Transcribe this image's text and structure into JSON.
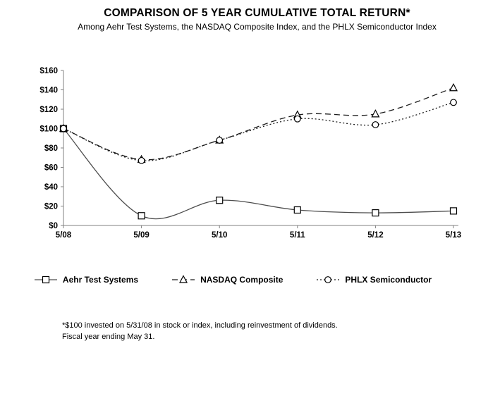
{
  "header": {
    "title": "COMPARISON OF 5 YEAR CUMULATIVE TOTAL RETURN*",
    "subtitle": "Among Aehr Test Systems, the NASDAQ Composite Index, and the PHLX Semiconductor Index"
  },
  "chart_data": {
    "type": "line",
    "title": "COMPARISON OF 5 YEAR CUMULATIVE TOTAL RETURN*",
    "categories": [
      "5/08",
      "5/09",
      "5/10",
      "5/11",
      "5/12",
      "5/13"
    ],
    "series": [
      {
        "name": "Aehr Test Systems",
        "marker": "square",
        "line": "solid",
        "color": "#4d4d4d",
        "marker_color": "#000000",
        "values": [
          100,
          10,
          26,
          16,
          13,
          15
        ]
      },
      {
        "name": "NASDAQ Composite",
        "marker": "triangle",
        "line": "dashed",
        "color": "#1a1a1a",
        "marker_color": "#000000",
        "values": [
          100,
          68,
          88,
          114,
          115,
          142
        ]
      },
      {
        "name": "PHLX Semiconductor",
        "marker": "circle",
        "line": "dotted",
        "color": "#1a1a1a",
        "marker_color": "#000000",
        "values": [
          100,
          67,
          88,
          110,
          104,
          127
        ]
      }
    ],
    "xlabel": "",
    "ylabel": "",
    "ylim": [
      0,
      160
    ],
    "ytick_step": 20,
    "ytick_prefix": "$",
    "grid": false,
    "legend_position": "bottom",
    "axis_color": "#808080"
  },
  "footnote": {
    "lines": [
      "*$100 invested on 5/31/08 in stock or index, including reinvestment of dividends.",
      "Fiscal year ending May 31."
    ]
  }
}
